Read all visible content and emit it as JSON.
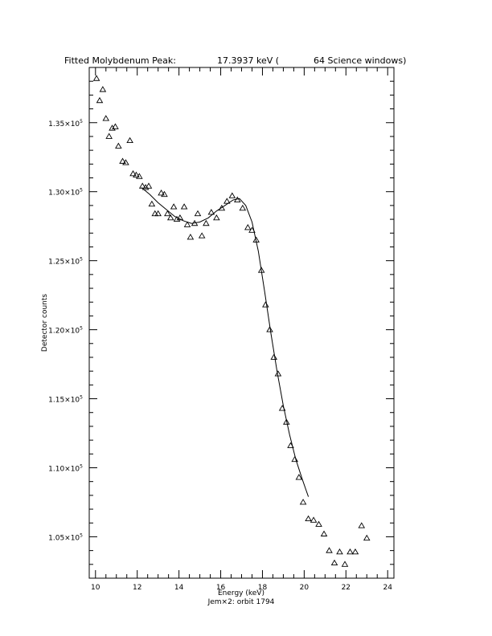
{
  "chart_data": {
    "type": "scatter",
    "title": {
      "label": "Fitted Molybdenum Peak:",
      "energy": "17.3937 keV (",
      "windows": "64 Science windows)"
    },
    "xlabel": "Energy (keV)",
    "ylabel": "Detector counts",
    "footer": "Jem×2: orbit 1794",
    "xlim": [
      9.7,
      24.3
    ],
    "ylim": [
      102000,
      139000
    ],
    "x_ticks": [
      {
        "value": 10,
        "label": "10"
      },
      {
        "value": 12,
        "label": "12"
      },
      {
        "value": 14,
        "label": "14"
      },
      {
        "value": 16,
        "label": "16"
      },
      {
        "value": 18,
        "label": "18"
      },
      {
        "value": 20,
        "label": "20"
      },
      {
        "value": 22,
        "label": "22"
      },
      {
        "value": 24,
        "label": "24"
      }
    ],
    "y_ticks": [
      {
        "value": 105000,
        "mantissa": "1.05×10",
        "exponent": "5"
      },
      {
        "value": 110000,
        "mantissa": "1.10×10",
        "exponent": "5"
      },
      {
        "value": 115000,
        "mantissa": "1.15×10",
        "exponent": "5"
      },
      {
        "value": 120000,
        "mantissa": "1.20×10",
        "exponent": "5"
      },
      {
        "value": 125000,
        "mantissa": "1.25×10",
        "exponent": "5"
      },
      {
        "value": 130000,
        "mantissa": "1.30×10",
        "exponent": "5"
      },
      {
        "value": 135000,
        "mantissa": "1.35×10",
        "exponent": "5"
      }
    ],
    "grid": false,
    "series": [
      {
        "marker": "open-triangle",
        "points": [
          [
            10.05,
            138200
          ],
          [
            10.2,
            136600
          ],
          [
            10.35,
            137400
          ],
          [
            10.5,
            135300
          ],
          [
            10.65,
            134000
          ],
          [
            10.8,
            134600
          ],
          [
            10.95,
            134700
          ],
          [
            11.1,
            133300
          ],
          [
            11.3,
            132200
          ],
          [
            11.45,
            132100
          ],
          [
            11.65,
            133700
          ],
          [
            11.8,
            131300
          ],
          [
            11.95,
            131200
          ],
          [
            12.1,
            131100
          ],
          [
            12.25,
            130400
          ],
          [
            12.4,
            130300
          ],
          [
            12.55,
            130400
          ],
          [
            12.7,
            129100
          ],
          [
            12.85,
            128400
          ],
          [
            13.0,
            128400
          ],
          [
            13.15,
            129900
          ],
          [
            13.3,
            129800
          ],
          [
            13.45,
            128400
          ],
          [
            13.6,
            128100
          ],
          [
            13.75,
            128900
          ],
          [
            13.9,
            128000
          ],
          [
            14.05,
            128100
          ],
          [
            14.25,
            128900
          ],
          [
            14.4,
            127600
          ],
          [
            14.55,
            126700
          ],
          [
            14.75,
            127700
          ],
          [
            14.9,
            128400
          ],
          [
            15.1,
            126800
          ],
          [
            15.3,
            127700
          ],
          [
            15.55,
            128500
          ],
          [
            15.8,
            128100
          ],
          [
            16.05,
            128800
          ],
          [
            16.3,
            129300
          ],
          [
            16.55,
            129700
          ],
          [
            16.8,
            129400
          ],
          [
            17.05,
            128800
          ],
          [
            17.3,
            127400
          ],
          [
            17.5,
            127200
          ],
          [
            17.7,
            126500
          ],
          [
            17.95,
            124300
          ],
          [
            18.15,
            121800
          ],
          [
            18.35,
            120000
          ],
          [
            18.55,
            118000
          ],
          [
            18.75,
            116800
          ],
          [
            18.95,
            114300
          ],
          [
            19.15,
            113300
          ],
          [
            19.35,
            111600
          ],
          [
            19.55,
            110600
          ],
          [
            19.75,
            109300
          ],
          [
            19.95,
            107500
          ],
          [
            20.2,
            106300
          ],
          [
            20.45,
            106200
          ],
          [
            20.7,
            105900
          ],
          [
            20.95,
            105200
          ],
          [
            21.2,
            104000
          ],
          [
            21.45,
            103100
          ],
          [
            21.7,
            103900
          ],
          [
            21.95,
            103000
          ],
          [
            22.2,
            103900
          ],
          [
            22.45,
            103900
          ],
          [
            22.75,
            105800
          ],
          [
            23.0,
            104900
          ]
        ]
      }
    ],
    "fit": {
      "points": [
        [
          12.2,
          130300
        ],
        [
          12.6,
          129800
        ],
        [
          13.0,
          129200
        ],
        [
          13.4,
          128700
        ],
        [
          13.8,
          128200
        ],
        [
          14.2,
          127900
        ],
        [
          14.6,
          127700
        ],
        [
          15.0,
          127800
        ],
        [
          15.4,
          128100
        ],
        [
          15.8,
          128600
        ],
        [
          16.2,
          129000
        ],
        [
          16.6,
          129400
        ],
        [
          16.9,
          129500
        ],
        [
          17.2,
          129000
        ],
        [
          17.5,
          127800
        ],
        [
          17.8,
          125700
        ],
        [
          18.1,
          122800
        ],
        [
          18.4,
          119800
        ],
        [
          18.7,
          117000
        ],
        [
          19.0,
          114500
        ],
        [
          19.3,
          112400
        ],
        [
          19.6,
          110600
        ],
        [
          19.9,
          109200
        ],
        [
          20.2,
          107900
        ]
      ]
    }
  }
}
